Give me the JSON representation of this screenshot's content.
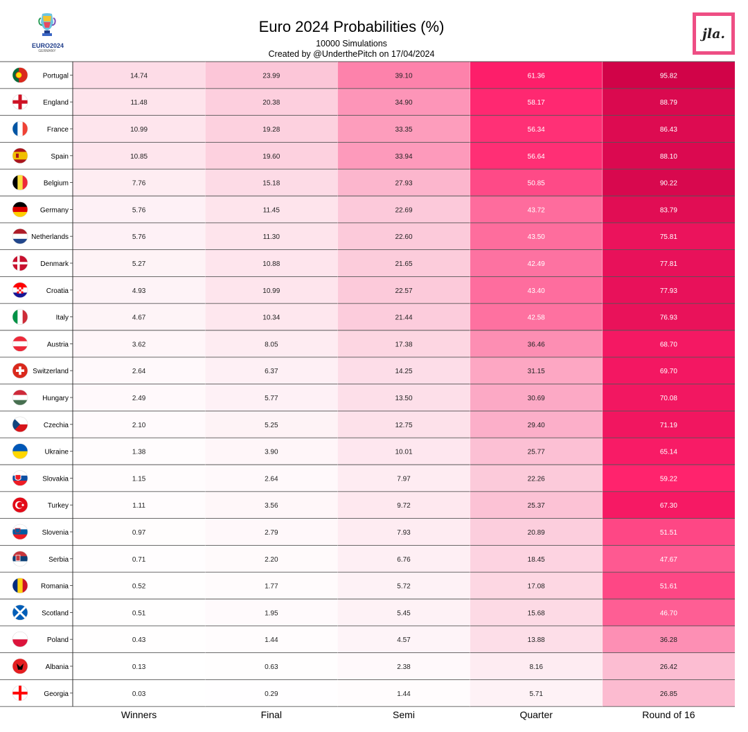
{
  "header": {
    "title": "Euro 2024 Probabilities (%)",
    "subtitle": "10000 Simulations",
    "credit": "Created by @UnderthePitch on 17/04/2024",
    "left_logo_text": "EURO2024",
    "left_logo_small": "GERMANY",
    "right_logo_text": "jla."
  },
  "chart_data": {
    "type": "heatmap",
    "title": "Euro 2024 Probabilities (%)",
    "columns": [
      "Winners",
      "Final",
      "Semi",
      "Quarter",
      "Round of 16"
    ],
    "colormap": {
      "low": "#ffffff",
      "high": "#cc0044",
      "mid": "#ff1f6b",
      "cmax": 100
    },
    "rows": [
      {
        "team": "Portugal",
        "flag": "portugal-flag",
        "values": [
          14.74,
          23.99,
          39.1,
          61.36,
          95.82
        ]
      },
      {
        "team": "England",
        "flag": "england-flag",
        "values": [
          11.48,
          20.38,
          34.9,
          58.17,
          88.79
        ]
      },
      {
        "team": "France",
        "flag": "france-flag",
        "values": [
          10.99,
          19.28,
          33.35,
          56.34,
          86.43
        ]
      },
      {
        "team": "Spain",
        "flag": "spain-flag",
        "values": [
          10.85,
          19.6,
          33.94,
          56.64,
          88.1
        ]
      },
      {
        "team": "Belgium",
        "flag": "belgium-flag",
        "values": [
          7.76,
          15.18,
          27.93,
          50.85,
          90.22
        ]
      },
      {
        "team": "Germany",
        "flag": "germany-flag",
        "values": [
          5.76,
          11.45,
          22.69,
          43.72,
          83.79
        ]
      },
      {
        "team": "Netherlands",
        "flag": "netherlands-flag",
        "values": [
          5.76,
          11.3,
          22.6,
          43.5,
          75.81
        ]
      },
      {
        "team": "Denmark",
        "flag": "denmark-flag",
        "values": [
          5.27,
          10.88,
          21.65,
          42.49,
          77.81
        ]
      },
      {
        "team": "Croatia",
        "flag": "croatia-flag",
        "values": [
          4.93,
          10.99,
          22.57,
          43.4,
          77.93
        ]
      },
      {
        "team": "Italy",
        "flag": "italy-flag",
        "values": [
          4.67,
          10.34,
          21.44,
          42.58,
          76.93
        ]
      },
      {
        "team": "Austria",
        "flag": "austria-flag",
        "values": [
          3.62,
          8.05,
          17.38,
          36.46,
          68.7
        ]
      },
      {
        "team": "Switzerland",
        "flag": "switzerland-flag",
        "values": [
          2.64,
          6.37,
          14.25,
          31.15,
          69.7
        ]
      },
      {
        "team": "Hungary",
        "flag": "hungary-flag",
        "values": [
          2.49,
          5.77,
          13.5,
          30.69,
          70.08
        ]
      },
      {
        "team": "Czechia",
        "flag": "czechia-flag",
        "values": [
          2.1,
          5.25,
          12.75,
          29.4,
          71.19
        ]
      },
      {
        "team": "Ukraine",
        "flag": "ukraine-flag",
        "values": [
          1.38,
          3.9,
          10.01,
          25.77,
          65.14
        ]
      },
      {
        "team": "Slovakia",
        "flag": "slovakia-flag",
        "values": [
          1.15,
          2.64,
          7.97,
          22.26,
          59.22
        ]
      },
      {
        "team": "Turkey",
        "flag": "turkey-flag",
        "values": [
          1.11,
          3.56,
          9.72,
          25.37,
          67.3
        ]
      },
      {
        "team": "Slovenia",
        "flag": "slovenia-flag",
        "values": [
          0.97,
          2.79,
          7.93,
          20.89,
          51.51
        ]
      },
      {
        "team": "Serbia",
        "flag": "serbia-flag",
        "values": [
          0.71,
          2.2,
          6.76,
          18.45,
          47.67
        ]
      },
      {
        "team": "Romania",
        "flag": "romania-flag",
        "values": [
          0.52,
          1.77,
          5.72,
          17.08,
          51.61
        ]
      },
      {
        "team": "Scotland",
        "flag": "scotland-flag",
        "values": [
          0.51,
          1.95,
          5.45,
          15.68,
          46.7
        ]
      },
      {
        "team": "Poland",
        "flag": "poland-flag",
        "values": [
          0.43,
          1.44,
          4.57,
          13.88,
          36.28
        ]
      },
      {
        "team": "Albania",
        "flag": "albania-flag",
        "values": [
          0.13,
          0.63,
          2.38,
          8.16,
          26.42
        ]
      },
      {
        "team": "Georgia",
        "flag": "georgia-flag",
        "values": [
          0.03,
          0.29,
          1.44,
          5.71,
          26.85
        ]
      }
    ]
  }
}
